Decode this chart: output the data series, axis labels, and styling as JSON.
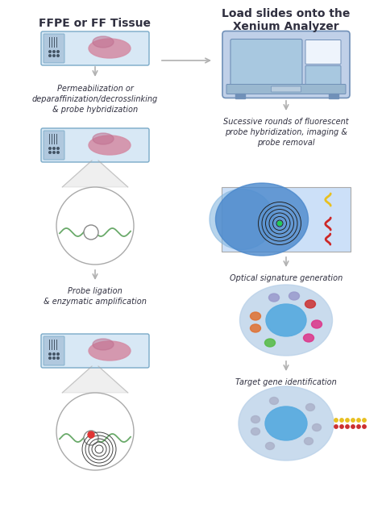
{
  "bg_color": "#ffffff",
  "title_left": "FFPE or FF Tissue",
  "title_right": "Load slides onto the\nXenium Analyzer",
  "label1": "Permeabilization or\ndeparaffinization/decrosslinking\n& probe hybridization",
  "label2": "Probe ligation\n& enzymatic amplification",
  "label3": "Sucessive rounds of fluorescent\nprobe hybridization, imaging &\nprobe removal",
  "label4": "Optical signature generation",
  "label5": "Target gene identification",
  "slide_bg": "#d8e8f5",
  "slide_border": "#7aaac8",
  "slide_left_bg": "#b0c8de",
  "tissue_color": "#d490a8",
  "tissue_dark": "#c07090",
  "green_line": "#6aaa6a",
  "arrow_color": "#b0b0b0",
  "text_color": "#303040",
  "cell_outer": "#b8d0e8",
  "cell_nucleus_blue": "#5aace0",
  "analyzer_body": "#c0d0e8",
  "analyzer_border": "#7090b8",
  "analyzer_screen": "#a8c8e0",
  "probe_rect_bg": "#cce0f8",
  "probe_rect_border": "#aaaaaa"
}
